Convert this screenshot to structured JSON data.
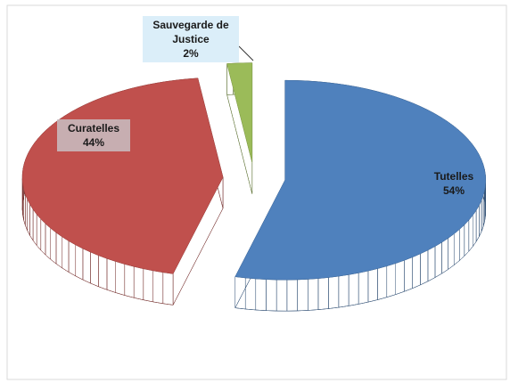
{
  "chart_data": {
    "type": "pie",
    "categories": [
      "Tutelles",
      "Curatelles",
      "Sauvegarde de Justice"
    ],
    "values": [
      54,
      44,
      2
    ],
    "value_labels": [
      "54%",
      "44%",
      "2%"
    ],
    "colors": [
      "#4f81bd",
      "#c0504d",
      "#9bbb59"
    ]
  }
}
